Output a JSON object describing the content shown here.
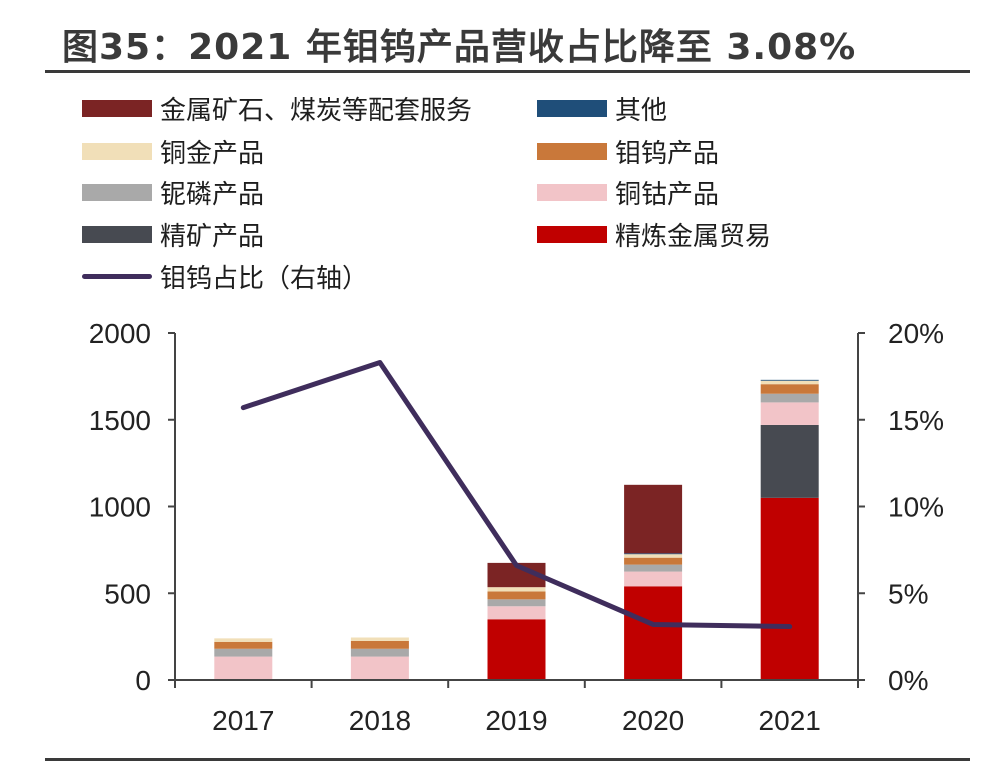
{
  "title": "图35：2021 年钼钨产品营收占比降至 3.08%",
  "legend": [
    {
      "label": "金属矿石、煤炭等配套服务",
      "color": "#7b2424",
      "kind": "bar"
    },
    {
      "label": "其他",
      "color": "#1f4e79",
      "kind": "bar"
    },
    {
      "label": "铜金产品",
      "color": "#f1dfb8",
      "kind": "bar"
    },
    {
      "label": "钼钨产品",
      "color": "#c9783a",
      "kind": "bar"
    },
    {
      "label": "铌磷产品",
      "color": "#a9a9a9",
      "kind": "bar"
    },
    {
      "label": "铜钴产品",
      "color": "#f2c4c8",
      "kind": "bar"
    },
    {
      "label": "精矿产品",
      "color": "#474a51",
      "kind": "bar"
    },
    {
      "label": "精炼金属贸易",
      "color": "#c00000",
      "kind": "bar"
    },
    {
      "label": "钼钨占比（右轴）",
      "color": "#3f2d5c",
      "kind": "line"
    }
  ],
  "chart_data": {
    "type": "bar",
    "stacked": true,
    "categories": [
      "2017",
      "2018",
      "2019",
      "2020",
      "2021"
    ],
    "series": [
      {
        "name": "精炼金属贸易",
        "values": [
          0,
          0,
          350,
          540,
          1050
        ],
        "color": "#c00000"
      },
      {
        "name": "精矿产品",
        "values": [
          0,
          0,
          0,
          0,
          420
        ],
        "color": "#474a51"
      },
      {
        "name": "铜钴产品",
        "values": [
          135,
          135,
          75,
          85,
          130
        ],
        "color": "#f2c4c8"
      },
      {
        "name": "铌磷产品",
        "values": [
          45,
          45,
          40,
          40,
          50
        ],
        "color": "#a9a9a9"
      },
      {
        "name": "钼钨产品",
        "values": [
          40,
          45,
          45,
          40,
          55
        ],
        "color": "#c9783a"
      },
      {
        "name": "铜金产品",
        "values": [
          20,
          20,
          25,
          20,
          20
        ],
        "color": "#f1dfb8"
      },
      {
        "name": "其他",
        "values": [
          0,
          0,
          0,
          5,
          5
        ],
        "color": "#1f4e79"
      },
      {
        "name": "金属矿石、煤炭等配套服务",
        "values": [
          0,
          0,
          140,
          395,
          0
        ],
        "color": "#7b2424"
      }
    ],
    "line": {
      "name": "钼钨占比（右轴）",
      "values": [
        15.7,
        18.3,
        6.6,
        3.2,
        3.08
      ],
      "color": "#3f2d5c",
      "axis": "right"
    },
    "y_left": {
      "lim": [
        0,
        2000
      ],
      "ticks": [
        "0",
        "500",
        "1000",
        "1500",
        "2000"
      ]
    },
    "y_right": {
      "lim": [
        0,
        20
      ],
      "ticks": [
        "0%",
        "5%",
        "10%",
        "15%",
        "20%"
      ]
    },
    "grid": false,
    "legend_position": "top"
  }
}
